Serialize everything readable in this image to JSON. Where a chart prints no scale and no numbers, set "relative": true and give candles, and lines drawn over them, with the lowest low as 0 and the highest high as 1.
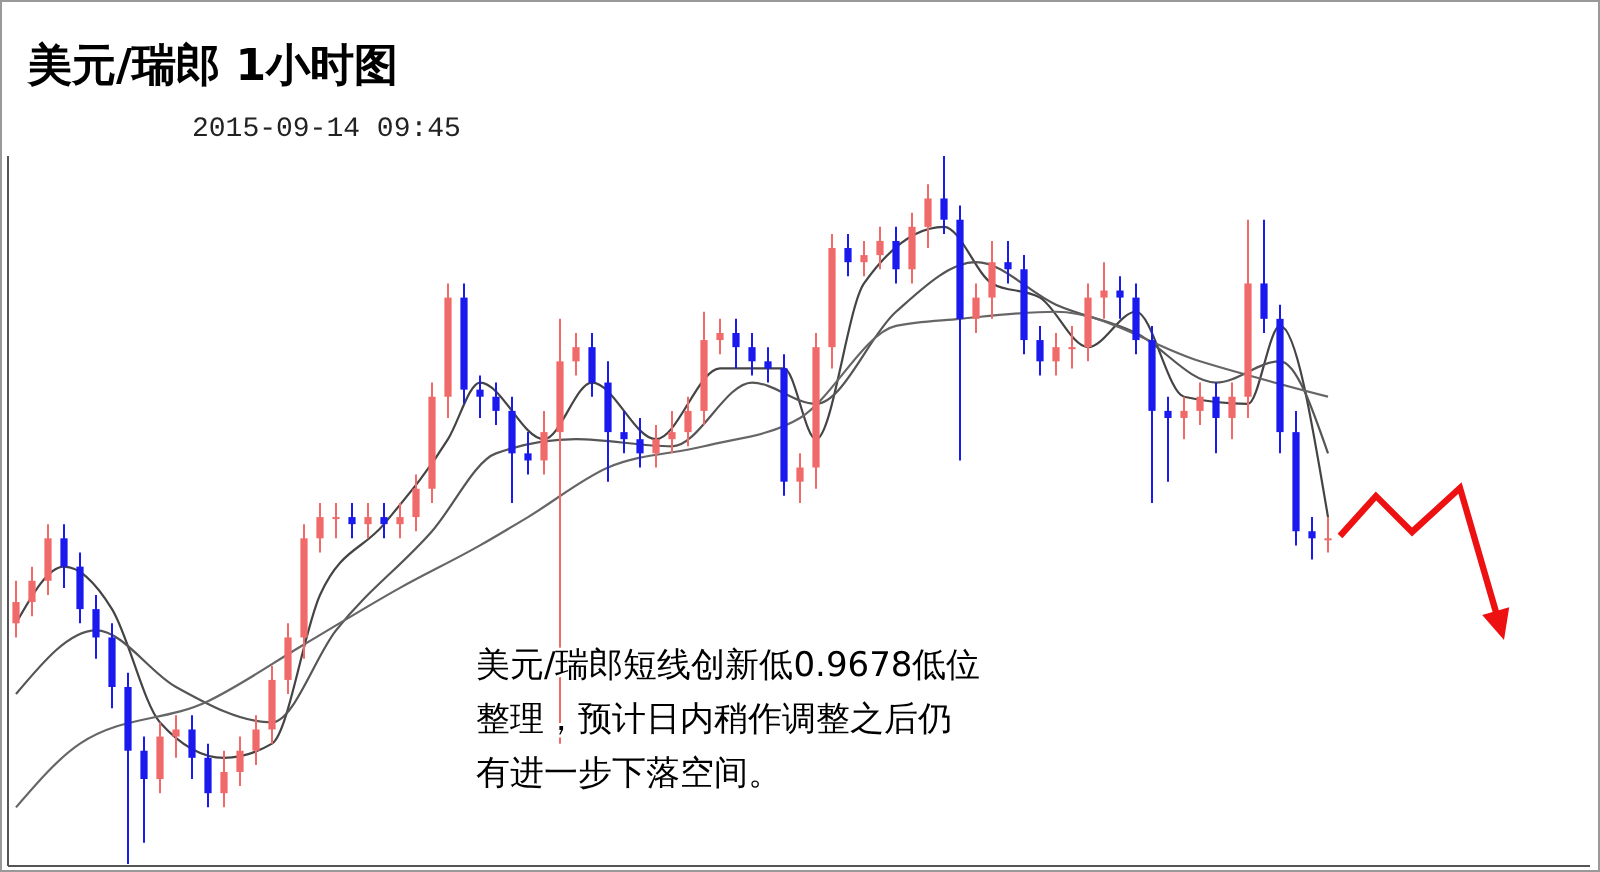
{
  "chart_data": {
    "type": "candlestick",
    "title": "美元/瑞郎 1小时图",
    "subtitle": "2015-09-14 09:45",
    "relative": true,
    "tick_labels": false,
    "grid": false,
    "annotations": [
      "美元/瑞郎短线创新低0.9678低位",
      "整理，预计日内稍作调整之后仍",
      "有进一步下落空间。"
    ],
    "categories": [
      null,
      null,
      null,
      null,
      null,
      null,
      null,
      null,
      null,
      null,
      null,
      null,
      null,
      null,
      null,
      null,
      null,
      null,
      null,
      null,
      null,
      null,
      null,
      null,
      null,
      null,
      null,
      null,
      null,
      null,
      null,
      null,
      null,
      null,
      null,
      null,
      null,
      null,
      null,
      null,
      null,
      null,
      null,
      null,
      null,
      null,
      null,
      null,
      null,
      null,
      null,
      null,
      null,
      null,
      null,
      null,
      null,
      null,
      null,
      null,
      null,
      null,
      null,
      null,
      null,
      null,
      null,
      null,
      null,
      null,
      null,
      null,
      null,
      null,
      null,
      null,
      null,
      null,
      null,
      null,
      null,
      null,
      null
    ],
    "ohlc": [
      [
        0.34,
        0.4,
        0.32,
        0.37
      ],
      [
        0.37,
        0.42,
        0.35,
        0.4
      ],
      [
        0.4,
        0.48,
        0.38,
        0.46
      ],
      [
        0.46,
        0.48,
        0.39,
        0.42
      ],
      [
        0.42,
        0.44,
        0.34,
        0.36
      ],
      [
        0.36,
        0.38,
        0.29,
        0.32
      ],
      [
        0.32,
        0.34,
        0.22,
        0.25
      ],
      [
        0.25,
        0.27,
        0,
        0.16
      ],
      [
        0.16,
        0.18,
        0.03,
        0.12
      ],
      [
        0.12,
        0.2,
        0.1,
        0.18
      ],
      [
        0.18,
        0.21,
        0.15,
        0.19
      ],
      [
        0.19,
        0.21,
        0.12,
        0.15
      ],
      [
        0.15,
        0.17,
        0.08,
        0.1
      ],
      [
        0.1,
        0.16,
        0.08,
        0.13
      ],
      [
        0.13,
        0.18,
        0.11,
        0.16
      ],
      [
        0.16,
        0.21,
        0.14,
        0.19
      ],
      [
        0.19,
        0.28,
        0.17,
        0.26
      ],
      [
        0.26,
        0.34,
        0.24,
        0.32
      ],
      [
        0.32,
        0.48,
        0.29,
        0.46
      ],
      [
        0.46,
        0.51,
        0.44,
        0.49
      ],
      [
        0.49,
        0.51,
        0.46,
        0.49
      ],
      [
        0.49,
        0.51,
        0.46,
        0.48
      ],
      [
        0.48,
        0.51,
        0.46,
        0.49
      ],
      [
        0.49,
        0.51,
        0.46,
        0.48
      ],
      [
        0.48,
        0.51,
        0.46,
        0.49
      ],
      [
        0.49,
        0.55,
        0.47,
        0.53
      ],
      [
        0.53,
        0.68,
        0.51,
        0.66
      ],
      [
        0.66,
        0.82,
        0.63,
        0.8
      ],
      [
        0.8,
        0.82,
        0.65,
        0.67
      ],
      [
        0.67,
        0.69,
        0.63,
        0.66
      ],
      [
        0.66,
        0.68,
        0.62,
        0.64
      ],
      [
        0.64,
        0.66,
        0.51,
        0.58
      ],
      [
        0.58,
        0.61,
        0.55,
        0.57
      ],
      [
        0.57,
        0.64,
        0.55,
        0.61
      ],
      [
        0.61,
        0.77,
        0.17,
        0.71
      ],
      [
        0.71,
        0.75,
        0.69,
        0.73
      ],
      [
        0.73,
        0.75,
        0.66,
        0.68
      ],
      [
        0.68,
        0.71,
        0.54,
        0.61
      ],
      [
        0.61,
        0.64,
        0.58,
        0.6
      ],
      [
        0.6,
        0.63,
        0.56,
        0.58
      ],
      [
        0.58,
        0.62,
        0.56,
        0.6
      ],
      [
        0.6,
        0.64,
        0.58,
        0.61
      ],
      [
        0.61,
        0.66,
        0.59,
        0.64
      ],
      [
        0.64,
        0.78,
        0.62,
        0.74
      ],
      [
        0.74,
        0.77,
        0.72,
        0.75
      ],
      [
        0.75,
        0.77,
        0.7,
        0.73
      ],
      [
        0.73,
        0.75,
        0.69,
        0.71
      ],
      [
        0.71,
        0.73,
        0.68,
        0.7
      ],
      [
        0.7,
        0.72,
        0.52,
        0.54
      ],
      [
        0.54,
        0.58,
        0.51,
        0.56
      ],
      [
        0.56,
        0.75,
        0.53,
        0.73
      ],
      [
        0.73,
        0.89,
        0.7,
        0.87
      ],
      [
        0.87,
        0.89,
        0.83,
        0.85
      ],
      [
        0.85,
        0.88,
        0.83,
        0.86
      ],
      [
        0.86,
        0.9,
        0.84,
        0.88
      ],
      [
        0.88,
        0.9,
        0.82,
        0.84
      ],
      [
        0.84,
        0.92,
        0.82,
        0.9
      ],
      [
        0.9,
        0.96,
        0.87,
        0.94
      ],
      [
        0.94,
        1,
        0.89,
        0.91
      ],
      [
        0.91,
        0.93,
        0.57,
        0.77
      ],
      [
        0.77,
        0.82,
        0.75,
        0.8
      ],
      [
        0.8,
        0.88,
        0.77,
        0.85
      ],
      [
        0.85,
        0.88,
        0.82,
        0.84
      ],
      [
        0.84,
        0.86,
        0.72,
        0.74
      ],
      [
        0.74,
        0.76,
        0.69,
        0.71
      ],
      [
        0.71,
        0.75,
        0.69,
        0.73
      ],
      [
        0.73,
        0.76,
        0.7,
        0.73
      ],
      [
        0.73,
        0.82,
        0.71,
        0.8
      ],
      [
        0.8,
        0.85,
        0.77,
        0.81
      ],
      [
        0.81,
        0.83,
        0.77,
        0.8
      ],
      [
        0.8,
        0.82,
        0.72,
        0.74
      ],
      [
        0.74,
        0.76,
        0.51,
        0.64
      ],
      [
        0.64,
        0.66,
        0.54,
        0.63
      ],
      [
        0.63,
        0.66,
        0.6,
        0.64
      ],
      [
        0.64,
        0.68,
        0.62,
        0.66
      ],
      [
        0.66,
        0.68,
        0.58,
        0.63
      ],
      [
        0.63,
        0.68,
        0.6,
        0.66
      ],
      [
        0.66,
        0.91,
        0.63,
        0.82
      ],
      [
        0.82,
        0.91,
        0.75,
        0.77
      ],
      [
        0.77,
        0.79,
        0.58,
        0.61
      ],
      [
        0.61,
        0.64,
        0.45,
        0.47
      ],
      [
        0.47,
        0.49,
        0.43,
        0.46
      ],
      [
        0.46,
        0.49,
        0.44,
        0.46
      ]
    ],
    "colors": [
      "#f06a6a",
      "#f06a6a",
      "#f06a6a",
      "#1a1aee",
      "#1a1aee",
      "#1a1aee",
      "#1a1aee",
      "#1a1aee",
      "#1a1aee",
      "#f06a6a",
      "#f06a6a",
      "#1a1aee",
      "#1a1aee",
      "#f06a6a",
      "#f06a6a",
      "#f06a6a",
      "#f06a6a",
      "#f06a6a",
      "#f06a6a",
      "#f06a6a",
      "#f06a6a",
      "#1a1aee",
      "#f06a6a",
      "#1a1aee",
      "#f06a6a",
      "#f06a6a",
      "#f06a6a",
      "#f06a6a",
      "#1a1aee",
      "#1a1aee",
      "#1a1aee",
      "#1a1aee",
      "#1a1aee",
      "#f06a6a",
      "#f06a6a",
      "#f06a6a",
      "#1a1aee",
      "#1a1aee",
      "#1a1aee",
      "#1a1aee",
      "#f06a6a",
      "#f06a6a",
      "#f06a6a",
      "#f06a6a",
      "#f06a6a",
      "#1a1aee",
      "#1a1aee",
      "#1a1aee",
      "#1a1aee",
      "#f06a6a",
      "#f06a6a",
      "#f06a6a",
      "#1a1aee",
      "#f06a6a",
      "#f06a6a",
      "#1a1aee",
      "#f06a6a",
      "#f06a6a",
      "#1a1aee",
      "#1a1aee",
      "#f06a6a",
      "#f06a6a",
      "#1a1aee",
      "#1a1aee",
      "#1a1aee",
      "#f06a6a",
      "#f06a6a",
      "#f06a6a",
      "#f06a6a",
      "#1a1aee",
      "#1a1aee",
      "#1a1aee",
      "#1a1aee",
      "#f06a6a",
      "#f06a6a",
      "#1a1aee",
      "#f06a6a",
      "#f06a6a",
      "#1a1aee",
      "#1a1aee",
      "#1a1aee",
      "#1a1aee",
      "#f06a6a"
    ],
    "series": [
      {
        "type": "line",
        "color": "#444444",
        "values": [
          0.34,
          null,
          null,
          0.42,
          null,
          null,
          0.36,
          null,
          null,
          0.2,
          null,
          null,
          null,
          0.15,
          null,
          null,
          0.17,
          null,
          null,
          0.38,
          null,
          null,
          null,
          0.48,
          null,
          null,
          null,
          0.6,
          null,
          0.68,
          null,
          null,
          null,
          0.6,
          null,
          null,
          0.68,
          null,
          null,
          null,
          0.6,
          null,
          null,
          null,
          0.7,
          null,
          null,
          null,
          0.7,
          null,
          0.6,
          null,
          null,
          0.82,
          null,
          null,
          null,
          null,
          0.9,
          null,
          null,
          0.82,
          null,
          null,
          0.8,
          null,
          null,
          0.73,
          null,
          null,
          0.78,
          null,
          null,
          0.66,
          null,
          null,
          null,
          0.65,
          null,
          0.76,
          null,
          null,
          0.49
        ]
      },
      {
        "type": "line",
        "color": "#555555",
        "values": [
          0.24,
          null,
          null,
          null,
          null,
          0.33,
          null,
          null,
          null,
          null,
          0.25,
          null,
          null,
          null,
          null,
          null,
          0.2,
          null,
          null,
          null,
          0.33,
          null,
          null,
          null,
          null,
          null,
          0.47,
          null,
          null,
          null,
          0.58,
          null,
          null,
          null,
          null,
          0.6,
          null,
          null,
          null,
          null,
          null,
          0.59,
          null,
          null,
          null,
          null,
          0.68,
          null,
          null,
          null,
          0.65,
          null,
          null,
          null,
          null,
          0.78,
          null,
          null,
          null,
          null,
          0.85,
          null,
          null,
          null,
          null,
          0.79,
          null,
          null,
          null,
          null,
          0.75,
          null,
          null,
          null,
          null,
          0.68,
          null,
          null,
          null,
          0.71,
          null,
          null,
          0.58
        ]
      },
      {
        "type": "line",
        "color": "#666666",
        "values": [
          0.08,
          null,
          null,
          null,
          0.17,
          null,
          null,
          null,
          null,
          null,
          null,
          null,
          0.23,
          null,
          null,
          null,
          null,
          null,
          0.31,
          null,
          null,
          null,
          null,
          null,
          0.39,
          null,
          null,
          null,
          null,
          0.45,
          null,
          null,
          0.49,
          null,
          null,
          null,
          null,
          0.56,
          null,
          null,
          null,
          null,
          null,
          0.59,
          null,
          null,
          null,
          null,
          null,
          0.63,
          null,
          null,
          null,
          null,
          null,
          0.76,
          null,
          null,
          null,
          0.77,
          null,
          null,
          null,
          null,
          null,
          0.78,
          null,
          null,
          null,
          null,
          null,
          null,
          null,
          null,
          0.71,
          null,
          null,
          null,
          null,
          null,
          null,
          null,
          0.66
        ]
      }
    ]
  }
}
